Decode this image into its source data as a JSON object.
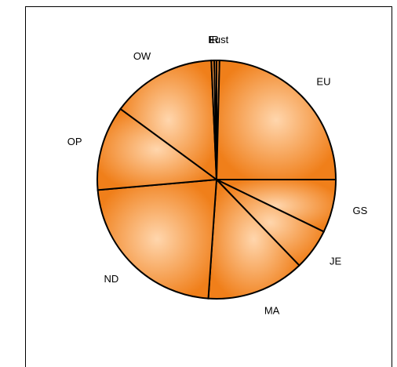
{
  "chart_data": {
    "type": "pie",
    "title": "",
    "slices": [
      {
        "label": "Eust",
        "value": 0.4
      },
      {
        "label": "EU",
        "value": 24.6
      },
      {
        "label": "GS",
        "value": 7.2
      },
      {
        "label": "JE",
        "value": 5.6
      },
      {
        "label": "MA",
        "value": 13.3
      },
      {
        "label": "ND",
        "value": 22.5
      },
      {
        "label": "OP",
        "value": 11.5
      },
      {
        "label": "OW",
        "value": 14.2
      },
      {
        "label": "F",
        "value": 0.4
      },
      {
        "label": "R",
        "value": 0.3
      }
    ],
    "colors": {
      "fill_edge": "#f07f1a",
      "fill_center": "#ffd1a3",
      "stroke": "#000000"
    },
    "legend": "none"
  }
}
